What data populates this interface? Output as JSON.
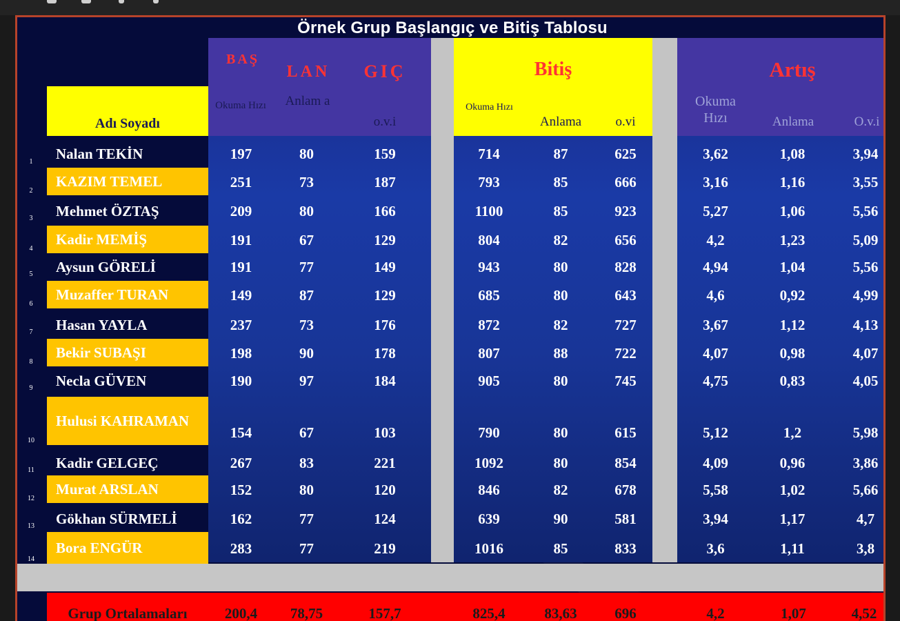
{
  "title": "Örnek Grup Başlangıç ve Bitiş Tablosu",
  "headers": {
    "name": "Adı Soyadı",
    "start_word_parts": [
      "BAŞ",
      "LAN",
      "GIÇ"
    ],
    "start_cols": [
      "Okuma Hızı",
      "Anlam a",
      "o.v.i"
    ],
    "end_title": "Bitiş",
    "end_cols": [
      "Okuma Hızı",
      "Anlama",
      "o.vi"
    ],
    "inc_title": "Artış",
    "inc_cols": [
      "Okuma Hızı",
      "Anlama",
      "O.v.i"
    ]
  },
  "rows": [
    {
      "no": "1",
      "name": "Nalan TEKİN",
      "b1": "197",
      "b2": "80",
      "b3": "159",
      "e1": "714",
      "e2": "87",
      "e3": "625",
      "a1": "3,62",
      "a2": "1,08",
      "a3": "3,94",
      "hl": false
    },
    {
      "no": "2",
      "name": "KAZIM TEMEL",
      "b1": "251",
      "b2": "73",
      "b3": "187",
      "e1": "793",
      "e2": "85",
      "e3": "666",
      "a1": "3,16",
      "a2": "1,16",
      "a3": "3,55",
      "hl": true
    },
    {
      "no": "3",
      "name": "Mehmet ÖZTAŞ",
      "b1": "209",
      "b2": "80",
      "b3": "166",
      "e1": "1100",
      "e2": "85",
      "e3": "923",
      "a1": "5,27",
      "a2": "1,06",
      "a3": "5,56",
      "hl": false
    },
    {
      "no": "4",
      "name": "Kadir  MEMİŞ",
      "b1": "191",
      "b2": "67",
      "b3": "129",
      "e1": "804",
      "e2": "82",
      "e3": "656",
      "a1": "4,2",
      "a2": "1,23",
      "a3": "5,09",
      "hl": true
    },
    {
      "no": "5",
      "name": "Aysun GÖRELİ",
      "b1": "191",
      "b2": "77",
      "b3": "149",
      "e1": "943",
      "e2": "80",
      "e3": "828",
      "a1": "4,94",
      "a2": "1,04",
      "a3": "5,56",
      "hl": false
    },
    {
      "no": "6",
      "name": "Muzaffer TURAN",
      "b1": "149",
      "b2": "87",
      "b3": "129",
      "e1": "685",
      "e2": "80",
      "e3": "643",
      "a1": "4,6",
      "a2": "0,92",
      "a3": "4,99",
      "hl": true
    },
    {
      "no": "7",
      "name": "Hasan YAYLA",
      "b1": "237",
      "b2": "73",
      "b3": "176",
      "e1": "872",
      "e2": "82",
      "e3": "727",
      "a1": "3,67",
      "a2": "1,12",
      "a3": "4,13",
      "hl": false
    },
    {
      "no": "8",
      "name": "Bekir SUBAŞI",
      "b1": "198",
      "b2": "90",
      "b3": "178",
      "e1": "807",
      "e2": "88",
      "e3": "722",
      "a1": "4,07",
      "a2": "0,98",
      "a3": "4,07",
      "hl": true
    },
    {
      "no": "9",
      "name": "Necla GÜVEN",
      "b1": "190",
      "b2": "97",
      "b3": "184",
      "e1": "905",
      "e2": "80",
      "e3": "745",
      "a1": "4,75",
      "a2": "0,83",
      "a3": "4,05",
      "hl": false
    },
    {
      "no": "10",
      "name": "Hulusi KAHRAMAN",
      "b1": "154",
      "b2": "67",
      "b3": "103",
      "e1": "790",
      "e2": "80",
      "e3": "615",
      "a1": "5,12",
      "a2": "1,2",
      "a3": "5,98",
      "hl": true
    },
    {
      "no": "11",
      "name": "Kadir GELGEÇ",
      "b1": "267",
      "b2": "83",
      "b3": "221",
      "e1": "1092",
      "e2": "80",
      "e3": "854",
      "a1": "4,09",
      "a2": "0,96",
      "a3": "3,86",
      "hl": false
    },
    {
      "no": "12",
      "name": "Murat ARSLAN",
      "b1": "152",
      "b2": "80",
      "b3": "120",
      "e1": "846",
      "e2": "82",
      "e3": "678",
      "a1": "5,58",
      "a2": "1,02",
      "a3": "5,66",
      "hl": true
    },
    {
      "no": "13",
      "name": "Gökhan SÜRMELİ",
      "b1": "162",
      "b2": "77",
      "b3": "124",
      "e1": "639",
      "e2": "90",
      "e3": "581",
      "a1": "3,94",
      "a2": "1,17",
      "a3": "4,7",
      "hl": false
    },
    {
      "no": "14",
      "name": "Bora ENGÜR",
      "b1": "283",
      "b2": "77",
      "b3": "219",
      "e1": "1016",
      "e2": "85",
      "e3": "833",
      "a1": "3,6",
      "a2": "1,11",
      "a3": "3,8",
      "hl": true
    }
  ],
  "averages": {
    "label": "Grup Ortalamaları",
    "b1": "200,4",
    "b2": "78,75",
    "b3": "157,7",
    "e1": "825,4",
    "e2": "83,63",
    "e3": "696",
    "a1": "4,2",
    "a2": "1,07",
    "a3": "4,52"
  },
  "colors": {
    "block_blue": "#1a3aa6",
    "header_purple": "#4436a2",
    "yellow": "#ffff00",
    "highlight": "#ffc400",
    "red": "#ff0000",
    "title_red": "#ff3333",
    "separator": "#c4c4c4"
  }
}
